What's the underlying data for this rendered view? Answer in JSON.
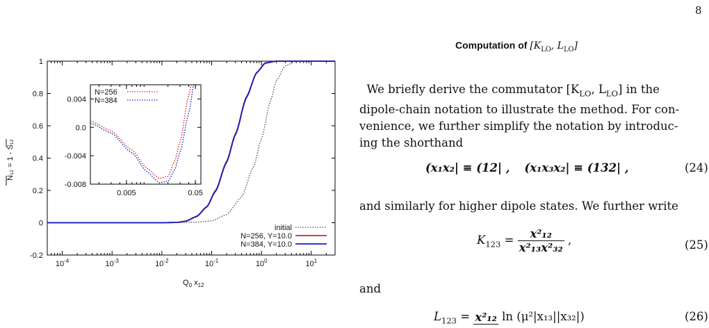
{
  "page_number": "8",
  "heading": {
    "text": "Computation of",
    "math": "[K",
    "lo": "LO",
    "comma": ", L",
    "lo2": "LO",
    "close": "]"
  },
  "paragraph": {
    "line1": "We briefly derive the commutator [K",
    "line1b": "LO",
    "line1c": ", L",
    "line1d": "LO",
    "line1e": "] in the",
    "line2": "dipole-chain notation to illustrate the method. For con-",
    "line3": "venience, we further simplify the notation by introduc-",
    "line4": "ing the shorthand"
  },
  "eq24": {
    "lhs1": "(x₁x₂| ≡ (12| ,",
    "lhs2": "(x₁x₃x₂| ≡ (132| ,",
    "number": "(24)"
  },
  "after24": "and similarly for higher dipole states. We further write",
  "eq25": {
    "lhs": "K",
    "sub": "123",
    "eq": "=",
    "num": "x²₁₂",
    "den": "x²₁₃x²₃₂",
    "number": "(25)"
  },
  "and_text": "and",
  "eq26": {
    "lhs": "L",
    "sub": "123",
    "eq": "=",
    "num": "x²₁₂",
    "tail": "ln (μ²|x₁₃||x₃₂|)",
    "number": "(26)"
  },
  "chart_data": [
    {
      "type": "line",
      "xlabel": "Q₀ x₁₂",
      "ylabel": "N₁₂ = 1 - S₁₂",
      "xscale": "log",
      "xlim": [
        5e-05,
        30
      ],
      "ylim": [
        -0.2,
        1.0
      ],
      "xticks": [
        "10⁻⁴",
        "10⁻³",
        "10⁻²",
        "10⁻¹",
        "10⁰",
        "10¹"
      ],
      "yticks": [
        "-0.2",
        "0",
        "0.2",
        "0.4",
        "0.6",
        "0.8",
        "1"
      ],
      "legend_position": "bottom-right",
      "series": [
        {
          "name": "initial",
          "color": "#555555",
          "style": "dotted",
          "x": [
            5e-05,
            0.01,
            0.05,
            0.1,
            0.2,
            0.4,
            0.7,
            1.0,
            1.5,
            2.0,
            3.0,
            5.0,
            30
          ],
          "y": [
            0,
            0,
            0.003,
            0.012,
            0.05,
            0.16,
            0.35,
            0.52,
            0.75,
            0.88,
            0.97,
            1.0,
            1.0
          ]
        },
        {
          "name": "N=256, Y=10.0",
          "color": "#e02020",
          "style": "solid",
          "x": [
            5e-05,
            0.01,
            0.02,
            0.03,
            0.05,
            0.08,
            0.12,
            0.2,
            0.3,
            0.5,
            0.8,
            1.2,
            2.0,
            30
          ],
          "y": [
            0,
            0,
            0.002,
            0.01,
            0.04,
            0.1,
            0.2,
            0.38,
            0.55,
            0.78,
            0.93,
            0.99,
            1.0,
            1.0
          ]
        },
        {
          "name": "N=384, Y=10.0",
          "color": "#1020c0",
          "style": "solid",
          "x": [
            5e-05,
            0.01,
            0.02,
            0.03,
            0.05,
            0.08,
            0.12,
            0.2,
            0.3,
            0.5,
            0.8,
            1.2,
            2.0,
            30
          ],
          "y": [
            0,
            0,
            0.002,
            0.009,
            0.038,
            0.098,
            0.195,
            0.375,
            0.545,
            0.775,
            0.928,
            0.988,
            1.0,
            1.0
          ]
        }
      ]
    },
    {
      "type": "line",
      "xscale": "log",
      "xlim": [
        0.0015,
        0.06
      ],
      "ylim": [
        -0.008,
        0.006
      ],
      "xticks": [
        "0.005",
        "0.05"
      ],
      "yticks": [
        "-0.008",
        "-0.004",
        "0.0",
        "0.004"
      ],
      "legend_position": "top-left",
      "series": [
        {
          "name": "N=256",
          "color": "#e02020",
          "style": "dotted",
          "x": [
            0.0015,
            0.003,
            0.006,
            0.01,
            0.015,
            0.02,
            0.025,
            0.03,
            0.04,
            0.05
          ],
          "y": [
            0.0009,
            -0.0005,
            -0.0032,
            -0.0058,
            -0.0072,
            -0.0069,
            -0.0048,
            -0.002,
            0.0045,
            0.0095
          ]
        },
        {
          "name": "N=384",
          "color": "#1020c0",
          "style": "dotted",
          "x": [
            0.0015,
            0.003,
            0.006,
            0.01,
            0.015,
            0.02,
            0.025,
            0.03,
            0.04,
            0.05
          ],
          "y": [
            0.0006,
            -0.0008,
            -0.0036,
            -0.0063,
            -0.0078,
            -0.0076,
            -0.006,
            -0.0035,
            0.002,
            0.0075
          ]
        }
      ]
    }
  ]
}
